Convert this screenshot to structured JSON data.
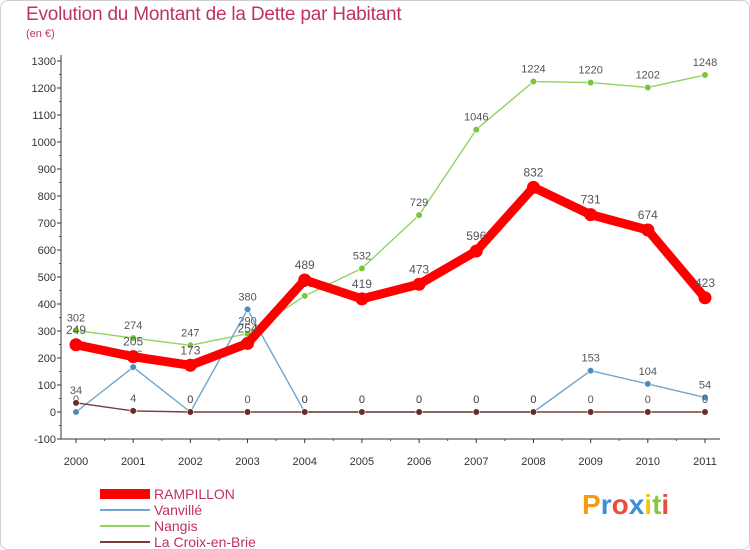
{
  "header": {
    "title": "Evolution du Montant de la Dette par Habitant",
    "subtitle": "(en €)"
  },
  "logo": {
    "text": "Proxiti",
    "colors": [
      "#f39c12",
      "#3a8fd6",
      "#e84c3d",
      "#3a8fd6",
      "#f1c40f",
      "#8cc63f",
      "#e84c3d"
    ]
  },
  "chart_data": {
    "type": "line",
    "x": [
      "2000",
      "2001",
      "2002",
      "2003",
      "2004",
      "2005",
      "2006",
      "2007",
      "2008",
      "2009",
      "2010",
      "2011"
    ],
    "ylim": [
      -100,
      1300
    ],
    "yticks": [
      "-100",
      "0",
      "100",
      "200",
      "300",
      "400",
      "500",
      "600",
      "700",
      "800",
      "900",
      "1000",
      "1100",
      "1200",
      "1300"
    ],
    "grid": false,
    "legend": "bottom-left",
    "series": [
      {
        "name": "Nangis",
        "color": "#8fd461",
        "marker_color": "#7cc33f",
        "values": [
          302,
          274,
          247,
          290,
          430,
          532,
          729,
          1046,
          1224,
          1220,
          1202,
          1248
        ],
        "labels": [
          "302",
          "274",
          "247",
          "290",
          "430",
          "532",
          "729",
          "1046",
          "1224",
          "1220",
          "1202",
          "1248"
        ]
      },
      {
        "name": "Vanvillé",
        "color": "#6ea6cf",
        "marker_color": "#4a8cc2",
        "values": [
          0,
          166,
          0,
          380,
          0,
          0,
          0,
          0,
          0,
          153,
          104,
          54
        ],
        "labels": [
          "0",
          "166",
          "0",
          "380",
          "0",
          "0",
          "0",
          "0",
          "0",
          "153",
          "104",
          "54"
        ]
      },
      {
        "name": "La Croix-en-Brie",
        "color": "#7a3b3b",
        "marker_color": "#6b2a2a",
        "values": [
          34,
          4,
          0,
          0,
          0,
          0,
          0,
          0,
          0,
          0,
          0,
          0
        ],
        "labels": [
          "34",
          "4",
          "0",
          "0",
          "0",
          "0",
          "0",
          "0",
          "0",
          "0",
          "0",
          "0"
        ]
      },
      {
        "name": "RAMPILLON",
        "color": "#ff0000",
        "marker_color": "#ff0000",
        "values": [
          249,
          205,
          173,
          254,
          489,
          419,
          473,
          596,
          832,
          731,
          674,
          423
        ],
        "labels": [
          "249",
          "205",
          "173",
          "254",
          "489",
          "419",
          "473",
          "596",
          "832",
          "731",
          "674",
          "423"
        ]
      }
    ]
  },
  "legend": {
    "items": [
      {
        "name": "RAMPILLON",
        "color": "#ff0000"
      },
      {
        "name": "Vanvillé",
        "color": "#6ea6cf"
      },
      {
        "name": "Nangis",
        "color": "#8fd461"
      },
      {
        "name": "La Croix-en-Brie",
        "color": "#7a3b3b"
      }
    ]
  }
}
